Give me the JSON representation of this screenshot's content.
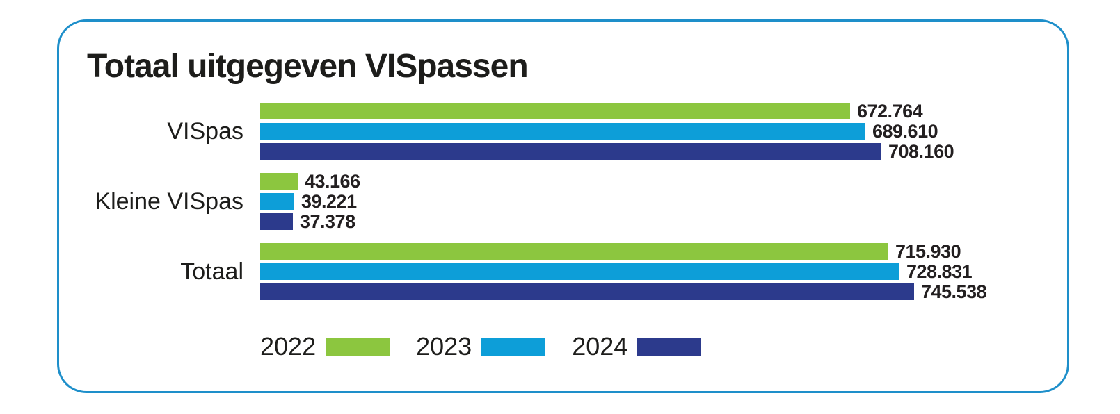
{
  "card": {
    "title": "Totaal uitgegeven VISpassen"
  },
  "colors": {
    "card_border": "#1e8fca",
    "title_text": "#1d1d1b",
    "value_text": "#231f20",
    "series_2022": "#8cc63f",
    "series_2023": "#0d9ed8",
    "series_2024": "#2c3a8c"
  },
  "chart_data": {
    "type": "bar",
    "orientation": "horizontal",
    "title": "Totaal uitgegeven VISpassen",
    "categories": [
      "VISpas",
      "Kleine VISpas",
      "Totaal"
    ],
    "series": [
      {
        "name": "2022",
        "color": "#8cc63f",
        "values": [
          672764,
          43166,
          715930
        ],
        "labels": [
          "672.764",
          "43.166",
          "715.930"
        ]
      },
      {
        "name": "2023",
        "color": "#0d9ed8",
        "values": [
          689610,
          39221,
          728831
        ],
        "labels": [
          "689.610",
          "39.221",
          "728.831"
        ]
      },
      {
        "name": "2024",
        "color": "#2c3a8c",
        "values": [
          708160,
          37378,
          745538
        ],
        "labels": [
          "708.160",
          "37.378",
          "745.538"
        ]
      }
    ],
    "value_labels": true,
    "axes_hidden": true,
    "grid": false,
    "legend_position": "bottom",
    "x_max_estimate": 920000
  }
}
